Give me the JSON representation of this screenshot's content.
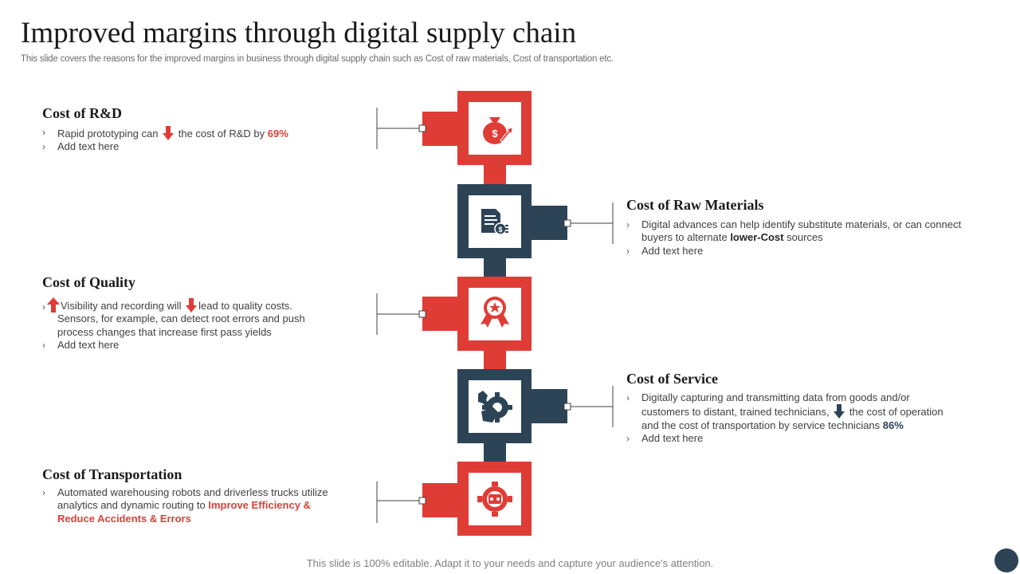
{
  "header": {
    "title": "Improved margins through digital supply chain",
    "subtitle": "This slide covers the reasons for the improved margins in business through digital supply chain such as Cost of raw materials, Cost of transportation etc."
  },
  "colors": {
    "red": "#e03c36",
    "navy": "#2d4457",
    "connector": "#404040"
  },
  "sections": {
    "rd": {
      "title": "Cost of R&D",
      "icon": "money-bag-growth-icon",
      "b1_pre": "Rapid prototyping can",
      "b1_post": "the cost of R&D by",
      "b1_value": "69%",
      "b2": "Add text here"
    },
    "raw": {
      "title": "Cost of Raw Materials",
      "icon": "document-dollar-icon",
      "b1_line1": "Digital advances can help identify substitute materials, or can connect",
      "b1_line2_pre": "buyers to alternate",
      "b1_line2_bold": "lower-Cost",
      "b1_line2_post": "sources",
      "b2": "Add text here"
    },
    "quality": {
      "title": "Cost of Quality",
      "icon": "award-ribbon-icon",
      "b1_a": "Visibility and recording will",
      "b1_b": "lead to quality costs.",
      "b1_line2": "Sensors, for example, can detect root errors and push",
      "b1_line3": "process changes that increase first pass yields",
      "b2": "Add text here"
    },
    "service": {
      "title": "Cost of Service",
      "icon": "gear-wrench-hand-icon",
      "b1_line1": "Digitally capturing and transmitting data from goods and/or",
      "b1_line2_pre": "customers to distant, trained technicians,",
      "b1_line2_post": "the cost of operation",
      "b1_line3": "and the cost of transportation by service technicians",
      "b1_value": "86%",
      "b2": "Add text here"
    },
    "transport": {
      "title": "Cost of Transportation",
      "icon": "gear-robot-icon",
      "b1_line1": "Automated warehousing robots and driverless trucks utilize",
      "b1_line2_pre": "analytics and dynamic routing to",
      "b1_hl1": "Improve Efficiency &",
      "b1_hl2": "Reduce Accidents & Errors"
    }
  },
  "footer": {
    "text": "This slide is 100% editable. Adapt it to your needs and capture your audience's attention."
  }
}
